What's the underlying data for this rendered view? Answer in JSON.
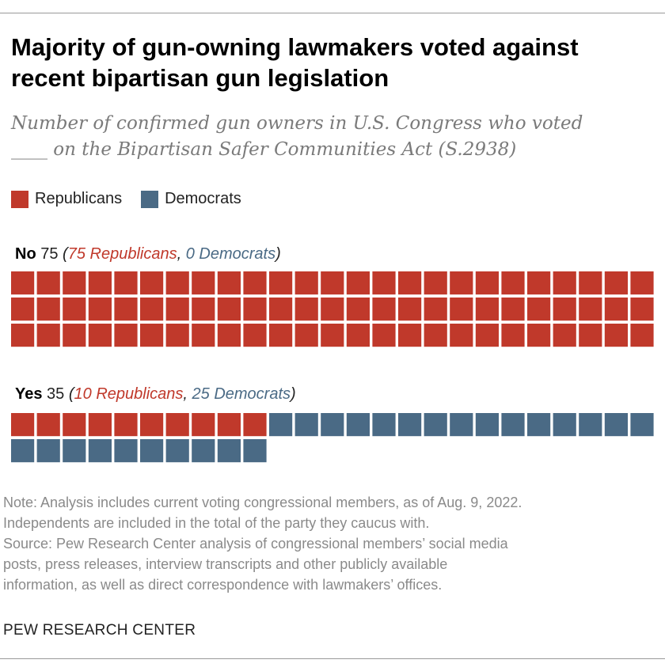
{
  "title": "Majority of gun-owning lawmakers voted against recent bipartisan gun legislation",
  "subtitle_line1": "Number of confirmed gun owners in U.S. Congress who voted",
  "subtitle_line2": "____ on the Bipartisan Safer Communities Act (S.2938)",
  "legend": [
    {
      "label": "Republicans",
      "color": "#C0392B"
    },
    {
      "label": "Democrats",
      "color": "#4A6A85"
    }
  ],
  "chart_data": {
    "type": "waffle",
    "title": "Majority of gun-owning lawmakers voted against recent bipartisan gun legislation",
    "units_per_row": 25,
    "groups": [
      {
        "name": "No",
        "total": "75",
        "label_rep": "75 Republicans",
        "label_dem": "0 Democrats",
        "republicans": 75,
        "democrats": 0
      },
      {
        "name": "Yes",
        "total": "35",
        "label_rep": "10 Republicans",
        "label_dem": "25 Democrats",
        "republicans": 10,
        "democrats": 25
      }
    ]
  },
  "notes": [
    "Note: Analysis includes current voting congressional members, as of Aug. 9, 2022.",
    "Independents are included in the total of the party they caucus with.",
    "Source: Pew Research Center analysis of congressional members’ social media",
    "posts, press releases, interview transcripts and other publicly available",
    "information, as well as direct correspondence with lawmakers’ offices."
  ],
  "brand": "PEW RESEARCH CENTER"
}
